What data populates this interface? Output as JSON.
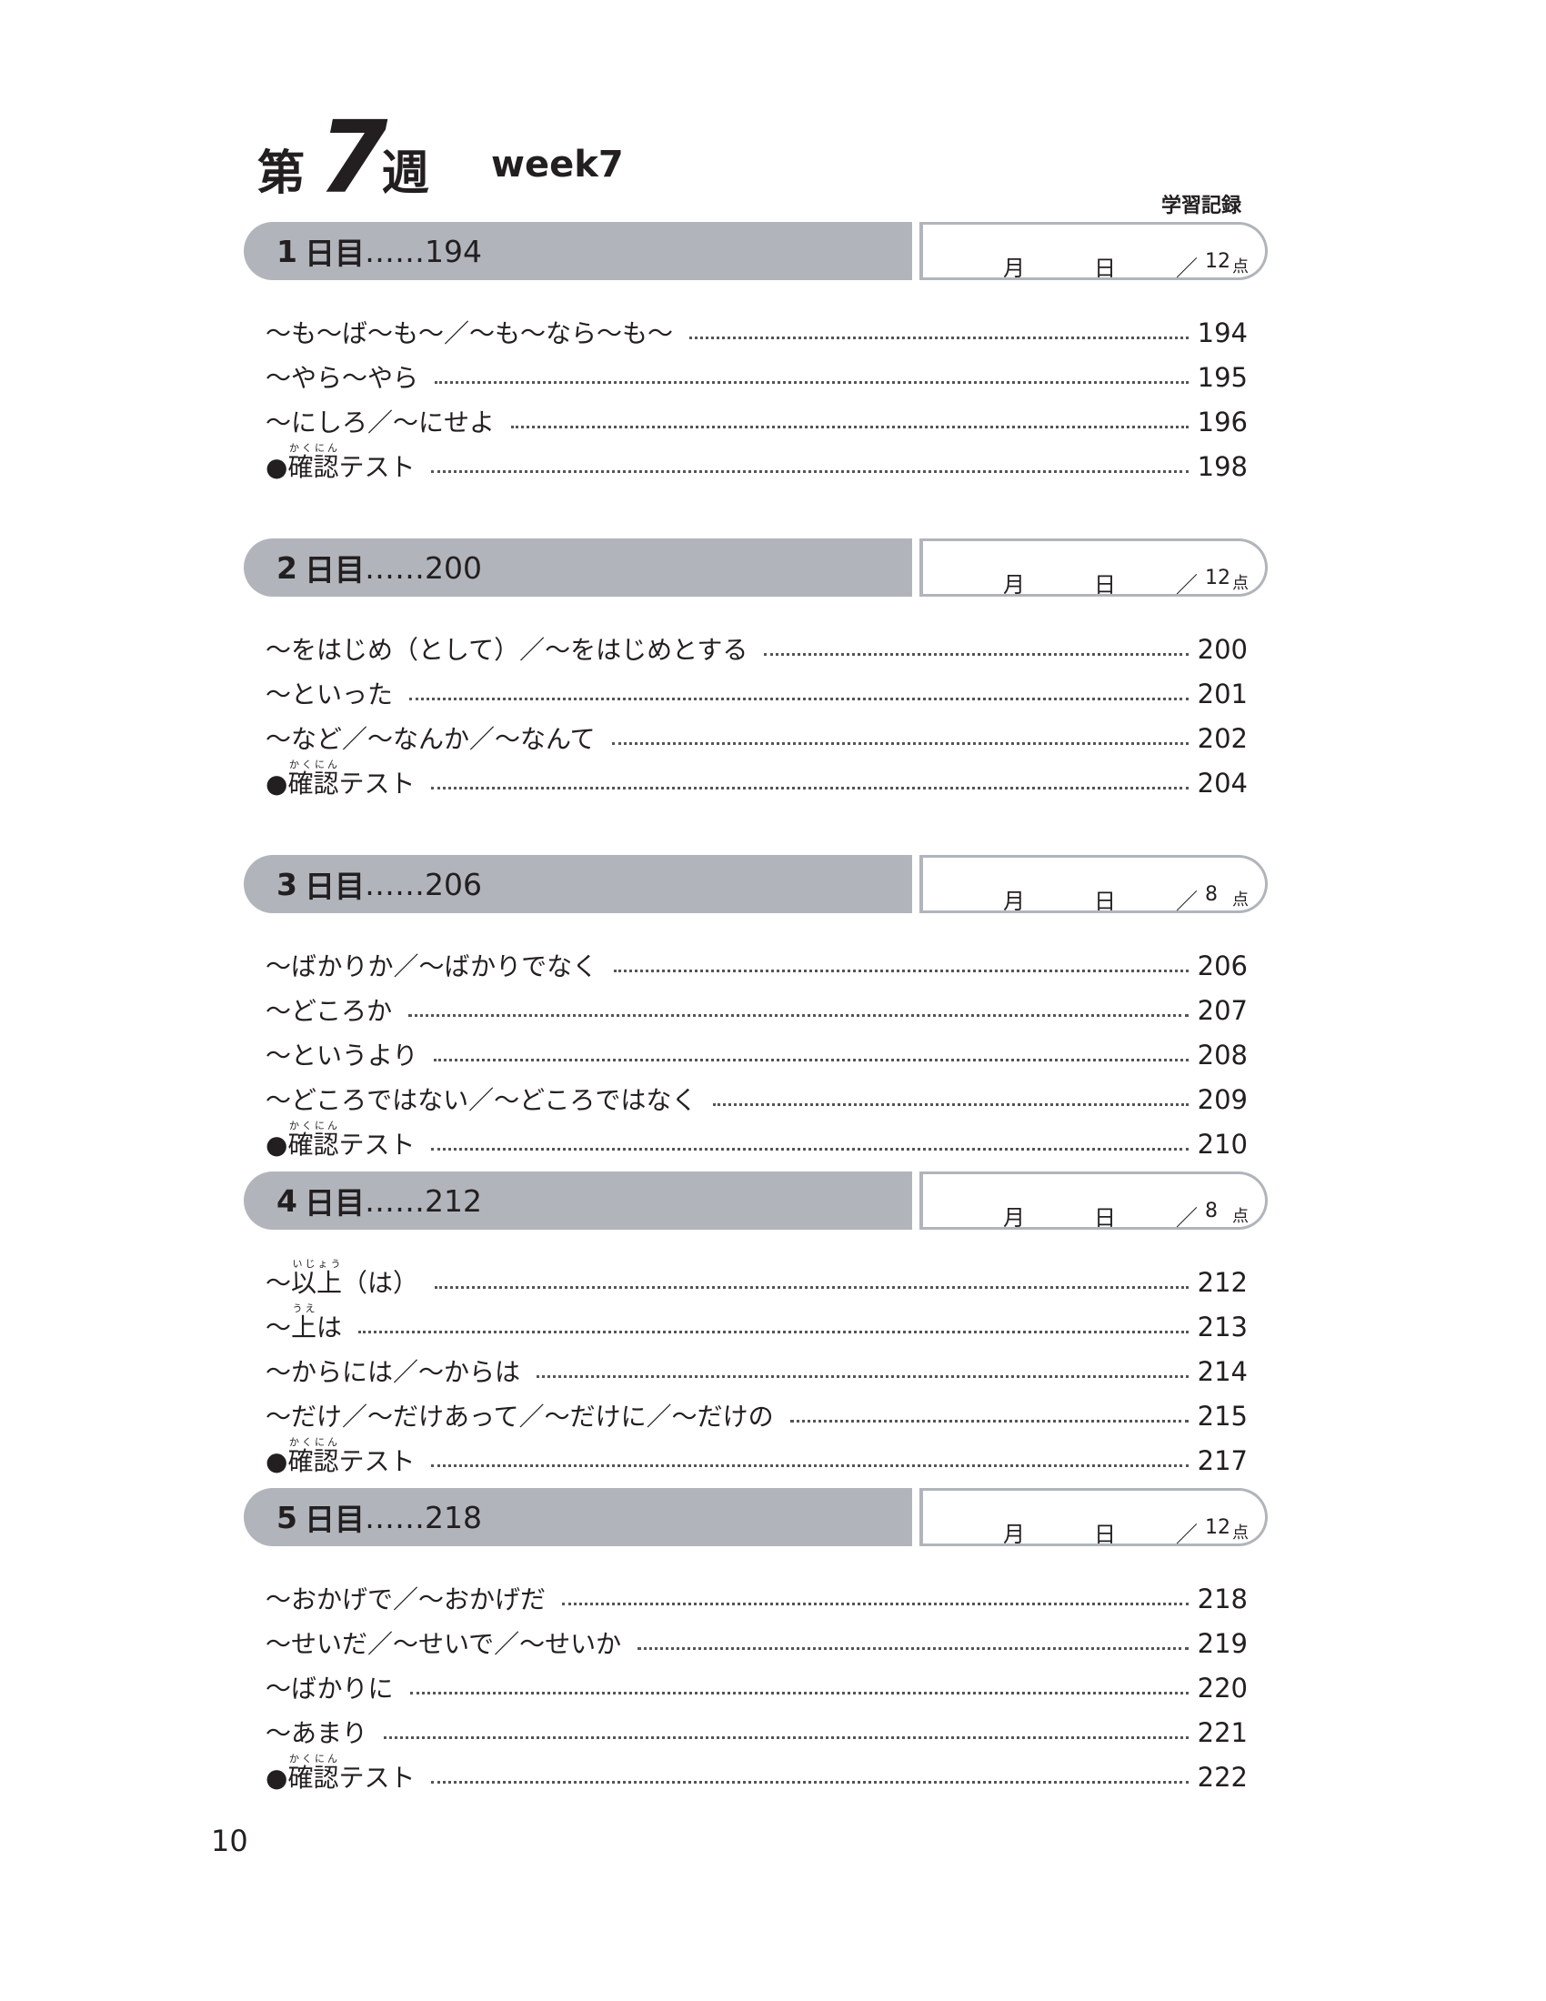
{
  "header": {
    "dai": "第",
    "number": "7",
    "shu": "週",
    "english": "week7",
    "record_label": "学習記録"
  },
  "record": {
    "month": "月",
    "day": "日",
    "slash": "／",
    "unit": "点"
  },
  "days": [
    {
      "number": "1",
      "label": "日目",
      "leader": "……",
      "page": "194",
      "points": "12",
      "items": [
        {
          "parts": [
            {
              "text": "〜も〜ば〜も〜／〜も〜なら〜も〜"
            }
          ],
          "page": "194"
        },
        {
          "parts": [
            {
              "text": "〜やら〜やら"
            }
          ],
          "page": "195"
        },
        {
          "parts": [
            {
              "text": "〜にしろ／〜にせよ"
            }
          ],
          "page": "196"
        },
        {
          "parts": [
            {
              "text": "●"
            },
            {
              "text": "確認",
              "ruby": "かくにん"
            },
            {
              "text": "テスト"
            }
          ],
          "page": "198"
        }
      ]
    },
    {
      "number": "2",
      "label": "日目",
      "leader": "……",
      "page": "200",
      "points": "12",
      "items": [
        {
          "parts": [
            {
              "text": "〜をはじめ（として）／〜をはじめとする"
            }
          ],
          "page": "200"
        },
        {
          "parts": [
            {
              "text": "〜といった"
            }
          ],
          "page": "201"
        },
        {
          "parts": [
            {
              "text": "〜など／〜なんか／〜なんて"
            }
          ],
          "page": "202"
        },
        {
          "parts": [
            {
              "text": "●"
            },
            {
              "text": "確認",
              "ruby": "かくにん"
            },
            {
              "text": "テスト"
            }
          ],
          "page": "204"
        }
      ]
    },
    {
      "number": "3",
      "label": "日目",
      "leader": "……",
      "page": "206",
      "points": "8",
      "items": [
        {
          "parts": [
            {
              "text": "〜ばかりか／〜ばかりでなく"
            }
          ],
          "page": "206"
        },
        {
          "parts": [
            {
              "text": "〜どころか"
            }
          ],
          "page": "207"
        },
        {
          "parts": [
            {
              "text": "〜というより"
            }
          ],
          "page": "208"
        },
        {
          "parts": [
            {
              "text": "〜どころではない／〜どころではなく"
            }
          ],
          "page": "209"
        },
        {
          "parts": [
            {
              "text": "●"
            },
            {
              "text": "確認",
              "ruby": "かくにん"
            },
            {
              "text": "テスト"
            }
          ],
          "page": "210"
        }
      ]
    },
    {
      "number": "4",
      "label": "日目",
      "leader": "……",
      "page": "212",
      "points": "8",
      "items": [
        {
          "parts": [
            {
              "text": "〜"
            },
            {
              "text": "以上",
              "ruby": "いじょう"
            },
            {
              "text": "（は）"
            }
          ],
          "page": "212"
        },
        {
          "parts": [
            {
              "text": "〜"
            },
            {
              "text": "上",
              "ruby": "うえ"
            },
            {
              "text": "は"
            }
          ],
          "page": "213"
        },
        {
          "parts": [
            {
              "text": "〜からには／〜からは"
            }
          ],
          "page": "214"
        },
        {
          "parts": [
            {
              "text": "〜だけ／〜だけあって／〜だけに／〜だけの"
            }
          ],
          "page": "215"
        },
        {
          "parts": [
            {
              "text": "●"
            },
            {
              "text": "確認",
              "ruby": "かくにん"
            },
            {
              "text": "テスト"
            }
          ],
          "page": "217"
        }
      ]
    },
    {
      "number": "5",
      "label": "日目",
      "leader": "……",
      "page": "218",
      "points": "12",
      "items": [
        {
          "parts": [
            {
              "text": "〜おかげで／〜おかげだ"
            }
          ],
          "page": "218"
        },
        {
          "parts": [
            {
              "text": "〜せいだ／〜せいで／〜せいか"
            }
          ],
          "page": "219"
        },
        {
          "parts": [
            {
              "text": "〜ばかりに"
            }
          ],
          "page": "220"
        },
        {
          "parts": [
            {
              "text": "〜あまり"
            }
          ],
          "page": "221"
        },
        {
          "parts": [
            {
              "text": "●"
            },
            {
              "text": "確認",
              "ruby": "かくにん"
            },
            {
              "text": "テスト"
            }
          ],
          "page": "222"
        }
      ]
    }
  ],
  "footer": {
    "page_number": "10"
  }
}
